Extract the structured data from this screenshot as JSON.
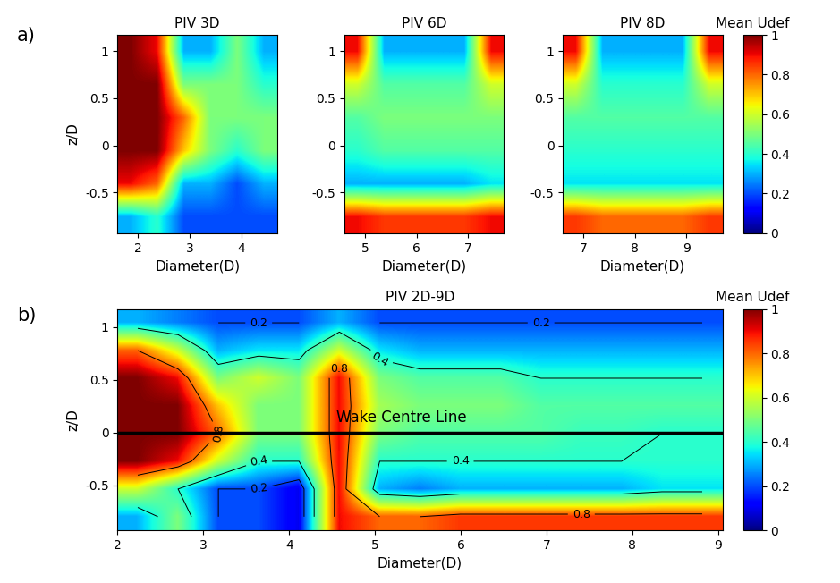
{
  "chart_data": [
    {
      "type": "heatmap",
      "panel_label": "a)",
      "title": "PIV 3D",
      "xlabel": "Diameter(D)",
      "ylabel": "z/D",
      "xlim": [
        1.6,
        4.7
      ],
      "ylim": [
        -0.93,
        1.17
      ],
      "xticks": [
        2,
        3,
        4
      ],
      "yticks": [
        -0.5,
        0,
        0.5,
        1
      ],
      "cells": [
        [
          1,
          0.9,
          0.3,
          0.3,
          0.5,
          0.3
        ],
        [
          1,
          1,
          0.5,
          0.5,
          0.5,
          0.4
        ],
        [
          1,
          1,
          0.8,
          0.5,
          0.5,
          0.5
        ],
        [
          1,
          1,
          0.7,
          0.5,
          0.4,
          0.5
        ],
        [
          0.9,
          0.8,
          0.3,
          0.3,
          0.2,
          0.3
        ],
        [
          0.3,
          0.4,
          0.2,
          0.2,
          0.2,
          0.2
        ]
      ]
    },
    {
      "type": "heatmap",
      "title": "PIV 6D",
      "xlabel": "Diameter(D)",
      "xlim": [
        4.6,
        7.7
      ],
      "ylim": [
        -0.93,
        1.17
      ],
      "xticks": [
        5,
        6,
        7
      ],
      "yticks": [
        -0.5,
        0,
        0.5,
        1
      ],
      "cells": [
        [
          0.9,
          0.3,
          0.3,
          0.3,
          0.3,
          0.9
        ],
        [
          0.6,
          0.45,
          0.45,
          0.45,
          0.45,
          0.6
        ],
        [
          0.45,
          0.5,
          0.5,
          0.5,
          0.5,
          0.5
        ],
        [
          0.4,
          0.45,
          0.45,
          0.45,
          0.45,
          0.45
        ],
        [
          0.3,
          0.3,
          0.3,
          0.3,
          0.3,
          0.35
        ],
        [
          0.9,
          0.85,
          0.85,
          0.85,
          0.85,
          0.9
        ]
      ]
    },
    {
      "type": "heatmap",
      "title": "PIV 8D",
      "xlabel": "Diameter(D)",
      "xlim": [
        6.6,
        9.7
      ],
      "ylim": [
        -0.93,
        1.17
      ],
      "xticks": [
        7,
        8,
        9
      ],
      "yticks": [
        -0.5,
        0,
        0.5,
        1
      ],
      "cells": [
        [
          0.9,
          0.3,
          0.3,
          0.3,
          0.3,
          0.9
        ],
        [
          0.6,
          0.4,
          0.4,
          0.4,
          0.4,
          0.6
        ],
        [
          0.45,
          0.45,
          0.45,
          0.45,
          0.45,
          0.45
        ],
        [
          0.4,
          0.4,
          0.4,
          0.4,
          0.4,
          0.4
        ],
        [
          0.35,
          0.35,
          0.35,
          0.35,
          0.35,
          0.35
        ],
        [
          0.85,
          0.8,
          0.8,
          0.8,
          0.8,
          0.85
        ]
      ],
      "colorbar": {
        "label": "Mean Udef",
        "range": [
          0,
          1
        ],
        "ticks": [
          0,
          0.2,
          0.4,
          0.6,
          0.8,
          1
        ]
      }
    },
    {
      "type": "heatmap",
      "panel_label": "b)",
      "title": "PIV 2D-9D",
      "xlabel": "Diameter(D)",
      "ylabel": "z/D",
      "xlim": [
        2,
        9.05
      ],
      "ylim": [
        -0.93,
        1.17
      ],
      "xticks": [
        2,
        3,
        4,
        5,
        6,
        7,
        8,
        9
      ],
      "yticks": [
        -0.5,
        0,
        0.5,
        1
      ],
      "cells": [
        [
          0.3,
          0.25,
          0.2,
          0.2,
          0.2,
          0.3,
          0.2,
          0.2,
          0.2,
          0.2,
          0.2,
          0.2,
          0.2,
          0.2,
          0.2
        ],
        [
          0.8,
          0.6,
          0.3,
          0.35,
          0.35,
          0.6,
          0.35,
          0.3,
          0.3,
          0.3,
          0.3,
          0.3,
          0.3,
          0.3,
          0.3
        ],
        [
          1,
          0.9,
          0.5,
          0.6,
          0.5,
          0.9,
          0.5,
          0.45,
          0.45,
          0.45,
          0.4,
          0.4,
          0.4,
          0.4,
          0.4
        ],
        [
          1,
          1,
          0.7,
          0.5,
          0.5,
          0.9,
          0.55,
          0.5,
          0.5,
          0.5,
          0.45,
          0.45,
          0.45,
          0.45,
          0.45
        ],
        [
          1,
          1,
          0.8,
          0.5,
          0.5,
          0.9,
          0.5,
          0.45,
          0.45,
          0.45,
          0.45,
          0.42,
          0.42,
          0.4,
          0.4
        ],
        [
          1,
          0.9,
          0.6,
          0.4,
          0.4,
          0.9,
          0.4,
          0.4,
          0.4,
          0.4,
          0.4,
          0.4,
          0.4,
          0.4,
          0.4
        ],
        [
          0.6,
          0.4,
          0.2,
          0.2,
          0.1,
          0.9,
          0.3,
          0.25,
          0.3,
          0.3,
          0.3,
          0.3,
          0.3,
          0.35,
          0.35
        ],
        [
          0.3,
          0.5,
          0.2,
          0.2,
          0.1,
          0.9,
          0.8,
          0.8,
          0.85,
          0.85,
          0.85,
          0.85,
          0.85,
          0.85,
          0.85
        ]
      ],
      "contour_levels": [
        0.2,
        0.4,
        0.8
      ],
      "centre_line": {
        "label": "Wake Centre Line",
        "z": 0
      },
      "colorbar": {
        "label": "Mean Udef",
        "range": [
          0,
          1
        ],
        "ticks": [
          0,
          0.2,
          0.4,
          0.6,
          0.8,
          1
        ]
      }
    }
  ]
}
